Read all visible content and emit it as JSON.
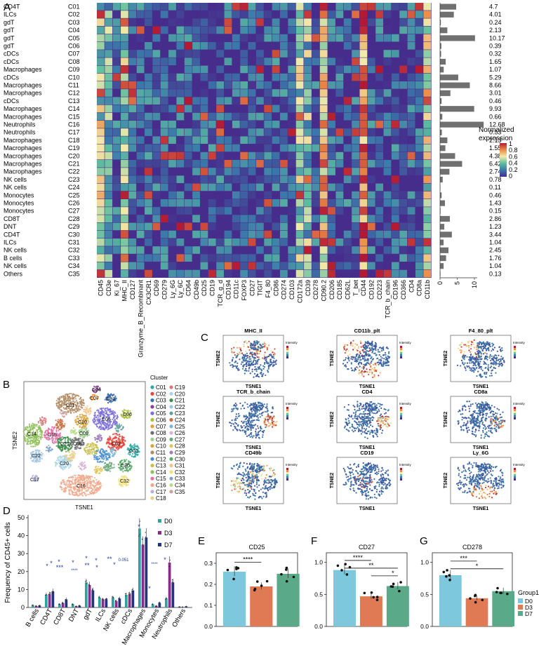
{
  "panel_letters": {
    "A": "A",
    "B": "B",
    "C": "C",
    "D": "D",
    "E": "E",
    "F": "F",
    "G": "G"
  },
  "heatmap": {
    "clusters": [
      "C01",
      "C02",
      "C03",
      "C04",
      "C05",
      "C06",
      "C07",
      "C08",
      "C09",
      "C10",
      "C11",
      "C12",
      "C13",
      "C14",
      "C15",
      "C16",
      "C17",
      "C18",
      "C19",
      "C20",
      "C21",
      "C22",
      "C23",
      "C24",
      "C25",
      "C26",
      "C27",
      "C28",
      "C29",
      "C30",
      "C31",
      "C32",
      "C33",
      "C34",
      "C35"
    ],
    "cell_types": [
      "CD4T",
      "ILCs",
      "gdT",
      "gdT",
      "gdT",
      "gdT",
      "cDCs",
      "cDCs",
      "Macrophages",
      "cDCs",
      "Macrophages",
      "Macrophages",
      "cDCs",
      "Macrophages",
      "Macrophages",
      "Neutrophils",
      "Neutrophils",
      "Macrophages",
      "Macrophages",
      "Macrophages",
      "Macrophages",
      "Macrophages",
      "NK cells",
      "NK cells",
      "Monocytes",
      "Monocytes",
      "Monocytes",
      "CD8T",
      "DNT",
      "CD4T",
      "ILCs",
      "NK cells",
      "B cells",
      "NK cells",
      "Others"
    ],
    "markers": [
      "CD45",
      "CD3e",
      "Ki_67",
      "MHC_II",
      "CD127",
      "Granzyme_B_Recombinant",
      "CX3CR1",
      "CD69",
      "CD279",
      "Ly_6G",
      "Ly_6C",
      "CD64",
      "CD49b",
      "CD25",
      "CD19",
      "TCR_g_d",
      "CD194",
      "CD11c",
      "FOXP3",
      "CD27",
      "TIGIT",
      "F4_80",
      "CD86",
      "CD274",
      "CD103",
      "CD172a",
      "CD39",
      "CD278",
      "CD90.2",
      "CD206",
      "CD185",
      "CD62L",
      "T_bet",
      "CD44",
      "CD192",
      "CD223",
      "TCR_b_chain",
      "CD196",
      "CD366",
      "CD4",
      "CD8a",
      "CD11b"
    ],
    "proportions": [
      4.7,
      4.01,
      0.24,
      2.13,
      10.17,
      0.39,
      0.32,
      1.65,
      1.07,
      5.29,
      8.66,
      3.01,
      0.46,
      9.93,
      0.66,
      12.68,
      0.53,
      2.13,
      1.55,
      4.38,
      6.42,
      2.74,
      0.78,
      0.11,
      0.46,
      1.43,
      0.15,
      2.86,
      1.23,
      3.44,
      1.04,
      2.45,
      1.76,
      1.04,
      0.13
    ],
    "proportion_labels": [
      "4.7",
      "4.01",
      "0.24",
      "2.13",
      "10.17",
      "0.39",
      "0.32",
      "1.65",
      "1.07",
      "5.29",
      "8.66",
      "3.01",
      "0.46",
      "9.93",
      "0.66",
      "12.68",
      "0.53",
      "2.13",
      "1.55",
      "4.38",
      "6.42",
      "2.74",
      "0.78",
      "0.11",
      "0.46",
      "1.43",
      "0.15",
      "2.86",
      "1.23",
      "3.44",
      "1.04",
      "2.45",
      "1.76",
      "1.04",
      "0.13"
    ],
    "bar_axis_ticks": [
      "0",
      "5",
      "10"
    ],
    "legend_title_1": "Normalized",
    "legend_title_2": "expression",
    "legend_ticks": [
      "1",
      "0.8",
      "0.6",
      "0.4",
      "0.2",
      "0"
    ],
    "bar_color": "#707070"
  },
  "tsne": {
    "xlabel": "TSNE1",
    "ylabel": "TSNE2",
    "legend_title": "Cluster",
    "legend_col1": [
      "C01",
      "C02",
      "C03",
      "C04",
      "C05",
      "C06",
      "C07",
      "C08",
      "C09",
      "C10",
      "C11",
      "C12",
      "C13",
      "C14",
      "C15",
      "C16",
      "C17",
      "C18"
    ],
    "legend_col2": [
      "C19",
      "C20",
      "C21",
      "C22",
      "C23",
      "C24",
      "C25",
      "C26",
      "C27",
      "C28",
      "C29",
      "C30",
      "C31",
      "C32",
      "C33",
      "C34",
      "C35"
    ],
    "colors": [
      "#2ea9a4",
      "#e8443a",
      "#3a6fb0",
      "#8a3f8f",
      "#7b6dd6",
      "#a9c23f",
      "#f29a3a",
      "#6e6e6e",
      "#9ccf8e",
      "#d9a23a",
      "#b08a63",
      "#4a8fd0",
      "#c9bf4f",
      "#8fbf5a",
      "#e073a8",
      "#f0a98c",
      "#b5b2d9",
      "#e7d08a",
      "#d47a7a",
      "#a7d3e8",
      "#3f8f4f",
      "#9fc3e0",
      "#5f9f9f",
      "#c96f3f",
      "#7fb5d6",
      "#d6b4d6",
      "#6aa77a",
      "#e1c55a",
      "#9d7fb9",
      "#5aaa6a",
      "#f2c48a",
      "#f1e27a",
      "#7fa0c9",
      "#b9d98a",
      "#cfa0a0"
    ],
    "cluster_labels": [
      {
        "label": "C11",
        "x": 100,
        "y": 577
      },
      {
        "label": "C05",
        "x": 151,
        "y": 597
      },
      {
        "label": "C03",
        "x": 157,
        "y": 568
      },
      {
        "label": "C06",
        "x": 181,
        "y": 590
      },
      {
        "label": "C14",
        "x": 45,
        "y": 618
      },
      {
        "label": "C15",
        "x": 74,
        "y": 619
      },
      {
        "label": "C10",
        "x": 117,
        "y": 601
      },
      {
        "label": "C21",
        "x": 92,
        "y": 632
      },
      {
        "label": "C08",
        "x": 110,
        "y": 632
      },
      {
        "label": "C09",
        "x": 119,
        "y": 617
      },
      {
        "label": "C02",
        "x": 165,
        "y": 632
      },
      {
        "label": "C01",
        "x": 190,
        "y": 642
      },
      {
        "label": "C22",
        "x": 51,
        "y": 649
      },
      {
        "label": "C20",
        "x": 91,
        "y": 660
      },
      {
        "label": "C16",
        "x": 115,
        "y": 692
      },
      {
        "label": "C32",
        "x": 177,
        "y": 685
      },
      {
        "label": "C30",
        "x": 178,
        "y": 663
      },
      {
        "label": "C04",
        "x": 137,
        "y": 555
      },
      {
        "label": "C07",
        "x": 134,
        "y": 567
      },
      {
        "label": "C17",
        "x": 49,
        "y": 683
      }
    ]
  },
  "feature_maps": {
    "legend_label": "Intensity",
    "panels": [
      {
        "title": "MHC_II",
        "type": "mhc"
      },
      {
        "title": "CD11b_plt",
        "type": "cd11b"
      },
      {
        "title": "F4_80_plt",
        "type": "f480"
      },
      {
        "title": "TCR_b_chain",
        "type": "tcr"
      },
      {
        "title": "CD4",
        "type": "cd4"
      },
      {
        "title": "CD8a",
        "type": "cd8a"
      },
      {
        "title": "CD49b",
        "type": "cd49b"
      },
      {
        "title": "CD19",
        "type": "cd19"
      },
      {
        "title": "Ly_6G",
        "type": "ly6g"
      }
    ],
    "xlabel": "TSNE1",
    "ylabel": "TSNE2"
  },
  "chart_data": [
    {
      "type": "bar",
      "panel": "D",
      "ylabel": "Frequency of CD45+ cells",
      "ylim": [
        0,
        50
      ],
      "yticks": [
        "0",
        "10",
        "20",
        "30",
        "40",
        "50"
      ],
      "categories": [
        "B cells",
        "CD4T",
        "CD8T",
        "DNT",
        "gdT",
        "ILCs",
        "NK cells",
        "cDCs",
        "Macrophages",
        "Monocytes",
        "Neutrophils",
        "Others"
      ],
      "series": [
        {
          "name": "D0",
          "color": "#2ea4a0",
          "values": [
            1.2,
            7,
            1.8,
            1.8,
            14,
            5.5,
            5.5,
            7,
            44,
            1.8,
            5,
            0.3
          ]
        },
        {
          "name": "D3",
          "color": "#8a2b8c",
          "values": [
            0.8,
            7.5,
            2.5,
            0.6,
            12.5,
            4.5,
            3.5,
            7.5,
            35,
            0.8,
            25,
            0.2
          ]
        },
        {
          "name": "D7",
          "color": "#24347a",
          "values": [
            1,
            9,
            4.5,
            1,
            9.5,
            4.5,
            5,
            9.5,
            39,
            2.5,
            14,
            0.5
          ]
        }
      ],
      "annotations": [
        "*",
        "*",
        "*",
        "***",
        "*",
        "****",
        "*",
        "**",
        "*",
        "*",
        "*",
        "**",
        "0.051",
        "*",
        "*",
        "****",
        "*"
      ]
    },
    {
      "type": "bar",
      "panel": "E",
      "title": "CD25",
      "ylim": [
        0,
        0.35
      ],
      "yticks": [
        "0.0",
        "0.1",
        "0.2",
        "0.3"
      ],
      "categories": [
        "D0",
        "D3",
        "D7"
      ],
      "values": [
        0.26,
        0.19,
        0.25
      ],
      "colors": [
        "#7ec8dd",
        "#e07a55",
        "#5aaa8a"
      ],
      "annotations": [
        "****"
      ]
    },
    {
      "type": "bar",
      "panel": "F",
      "title": "CD27",
      "ylim": [
        0,
        1.15
      ],
      "yticks": [
        "0.0",
        "0.5",
        "1.0"
      ],
      "categories": [
        "D0",
        "D3",
        "D7"
      ],
      "values": [
        0.88,
        0.47,
        0.63
      ],
      "colors": [
        "#7ec8dd",
        "#e07a55",
        "#5aaa8a"
      ],
      "annotations": [
        "****",
        "**",
        "*"
      ]
    },
    {
      "type": "bar",
      "panel": "G",
      "title": "CD278",
      "ylim": [
        0,
        1.15
      ],
      "yticks": [
        "0.0",
        "0.5",
        "1.0"
      ],
      "categories": [
        "D0",
        "D3",
        "D7"
      ],
      "values": [
        0.8,
        0.44,
        0.55
      ],
      "colors": [
        "#7ec8dd",
        "#e07a55",
        "#5aaa8a"
      ],
      "annotations": [
        "***",
        "*"
      ],
      "legend_title": "Group1",
      "legend": [
        "D0",
        "D3",
        "D7"
      ]
    }
  ],
  "d_legend": [
    "D0",
    "D3",
    "D7"
  ]
}
